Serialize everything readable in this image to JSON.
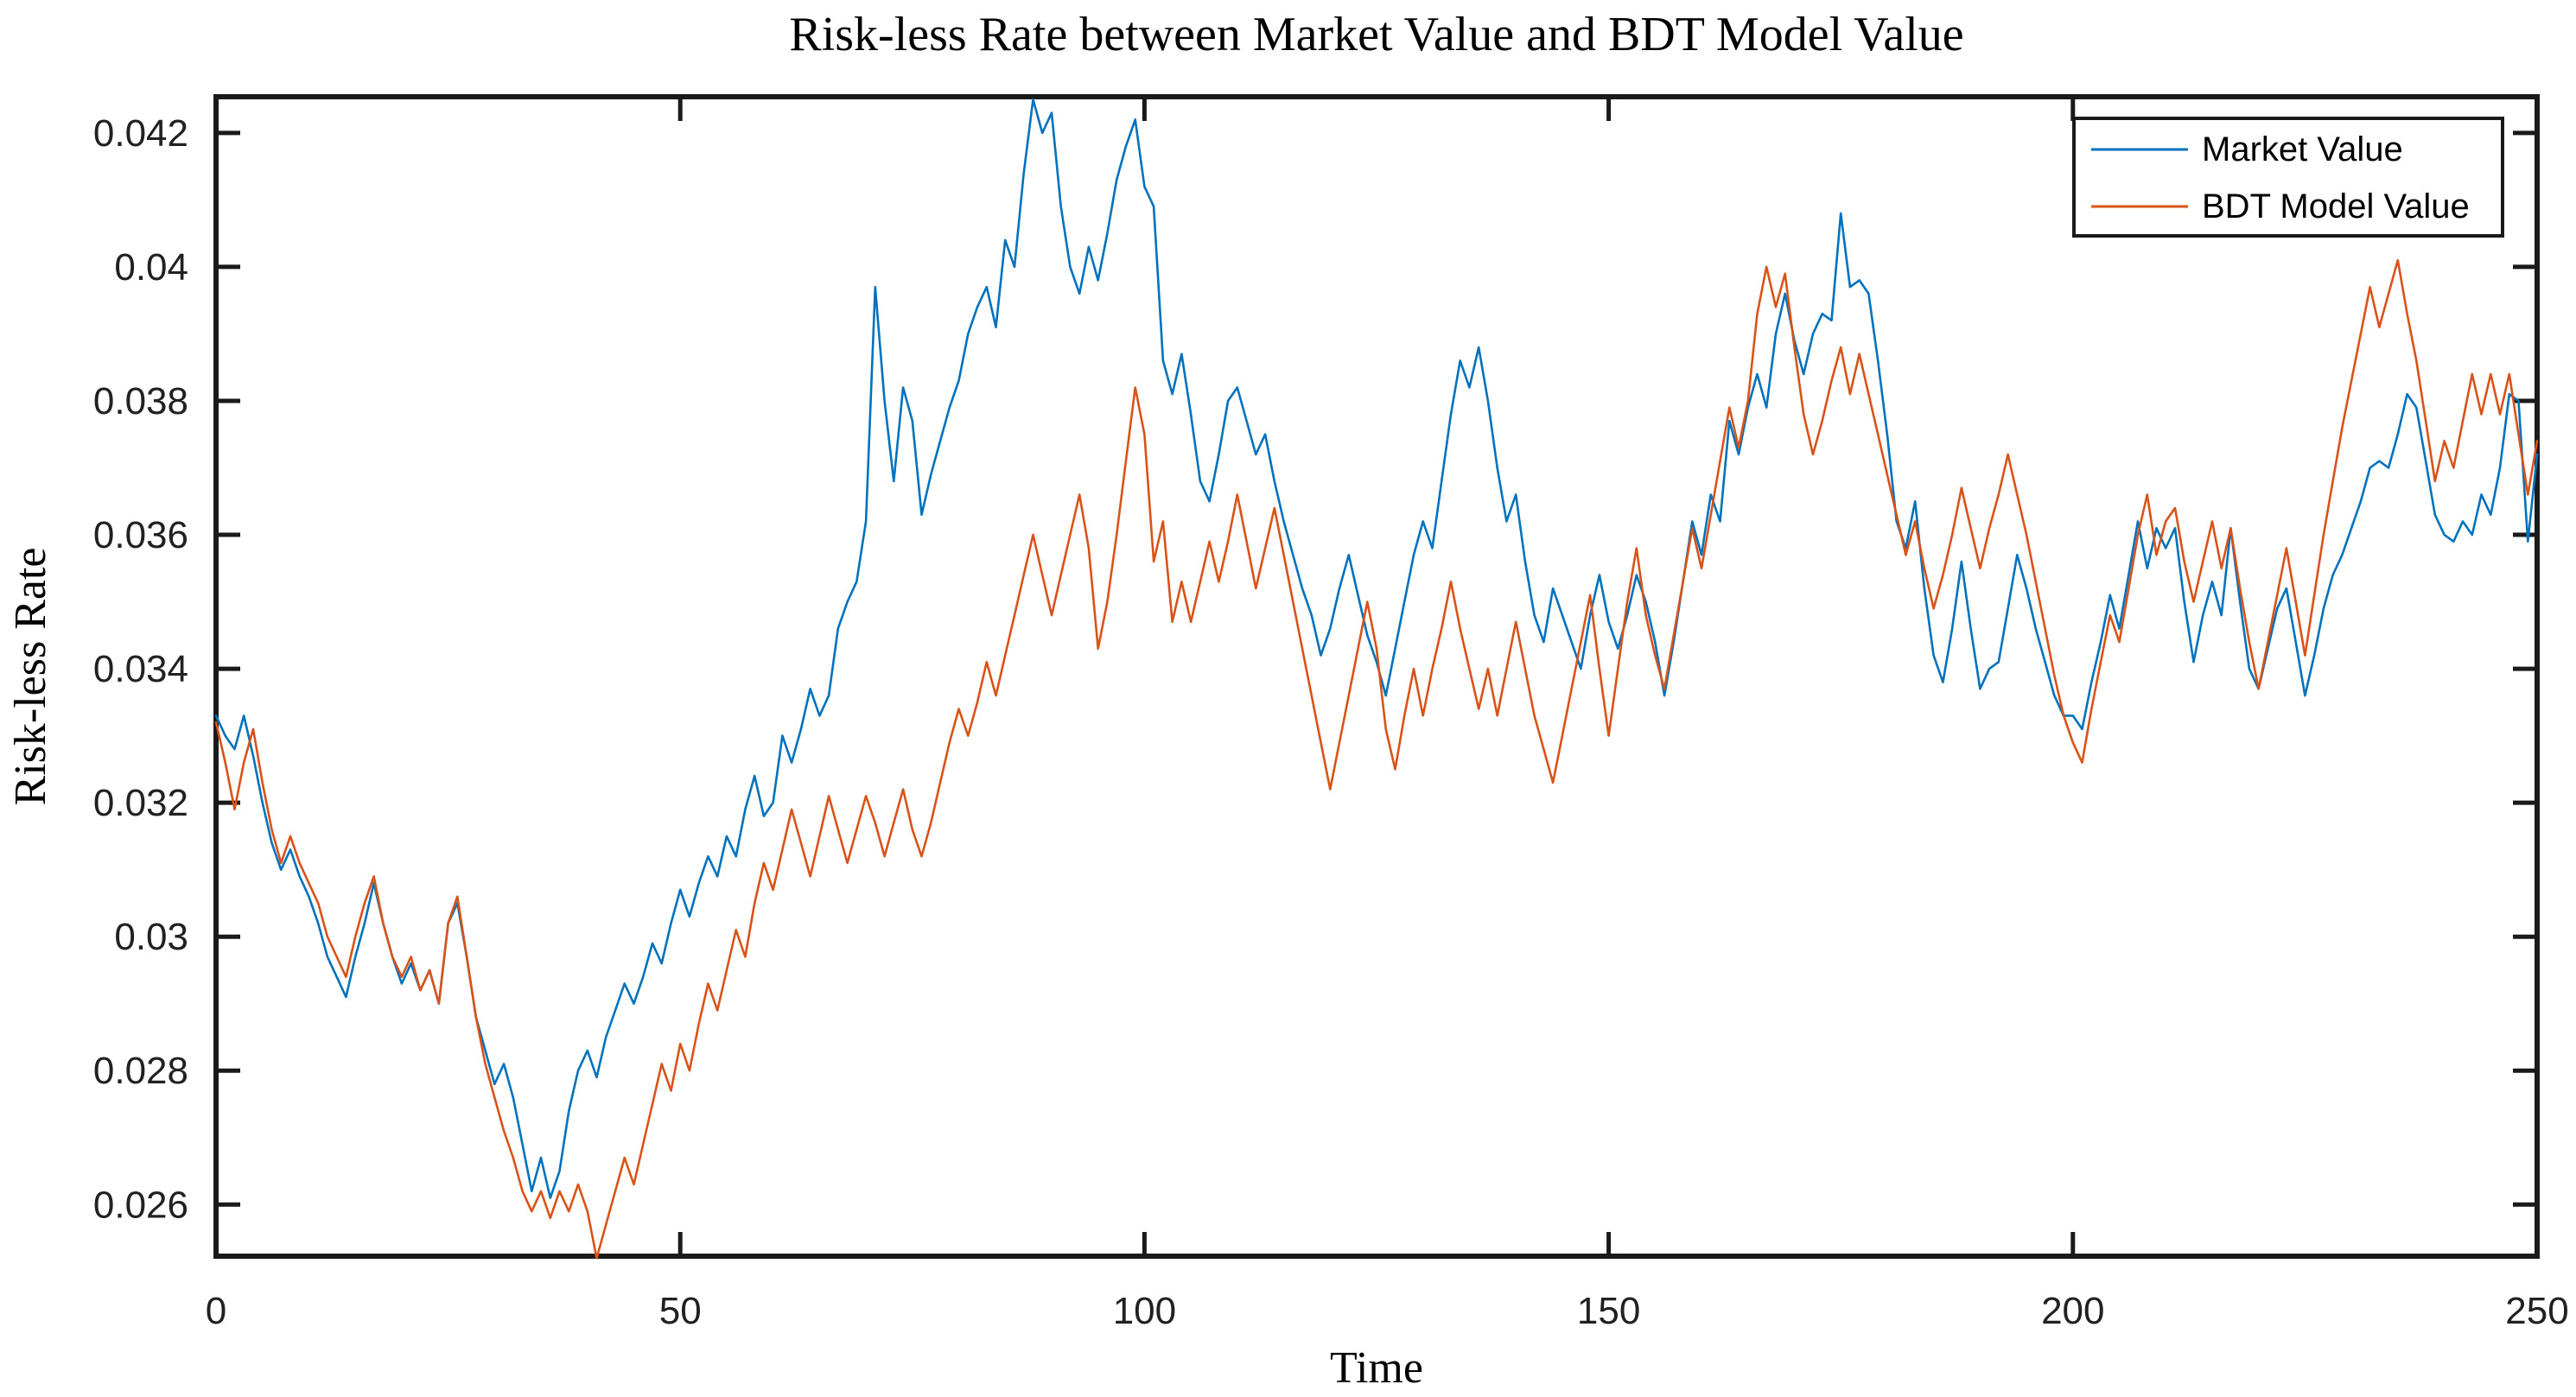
{
  "title": "Risk-less Rate between Market Value and BDT Model Value",
  "axes": {
    "xlabel": "Time",
    "ylabel": "Risk-less Rate",
    "xlim": [
      0,
      250
    ],
    "ylim": [
      0.02523,
      0.04254
    ],
    "xticks": [
      0,
      50,
      100,
      150,
      200,
      250
    ],
    "xtick_labels": [
      "0",
      "50",
      "100",
      "150",
      "200",
      "250"
    ],
    "yticks": [
      0.026,
      0.028,
      0.03,
      0.032,
      0.034,
      0.036,
      0.038,
      0.04,
      0.042
    ],
    "ytick_labels": [
      "0.026",
      "0.028",
      "0.03",
      "0.032",
      "0.034",
      "0.036",
      "0.038",
      "0.04",
      "0.042"
    ],
    "box": "on",
    "grid": "off",
    "axis_color": "#1a1a1a",
    "tick_direction": "in"
  },
  "legend": {
    "position": "top-right",
    "border_color": "#1a1a1a",
    "background": "#ffffff",
    "entries": [
      {
        "label": "Market Value",
        "color": "#0072BD"
      },
      {
        "label": "BDT Model Value",
        "color": "#D95319"
      }
    ]
  },
  "chart_data": {
    "type": "line",
    "title": "Risk-less Rate between Market Value and BDT Model Value",
    "xlabel": "Time",
    "ylabel": "Risk-less Rate",
    "xlim": [
      0,
      250
    ],
    "ylim": [
      0.02523,
      0.04254
    ],
    "legend_position": "top-right",
    "grid": false,
    "x": {
      "start": 0,
      "step": 1,
      "count": 251
    },
    "series": [
      {
        "name": "Market Value",
        "color": "#0072BD",
        "values": [
          0.0333,
          0.033,
          0.0328,
          0.0333,
          0.0327,
          0.032,
          0.0314,
          0.031,
          0.0313,
          0.0309,
          0.0306,
          0.0302,
          0.0297,
          0.0294,
          0.0291,
          0.0297,
          0.0302,
          0.0308,
          0.0302,
          0.0297,
          0.0293,
          0.0296,
          0.0292,
          0.0295,
          0.029,
          0.0302,
          0.0305,
          0.0297,
          0.0288,
          0.0283,
          0.0278,
          0.0281,
          0.0276,
          0.0269,
          0.0262,
          0.0267,
          0.0261,
          0.0265,
          0.0274,
          0.028,
          0.0283,
          0.0279,
          0.0285,
          0.0289,
          0.0293,
          0.029,
          0.0294,
          0.0299,
          0.0296,
          0.0302,
          0.0307,
          0.0303,
          0.0308,
          0.0312,
          0.0309,
          0.0315,
          0.0312,
          0.0319,
          0.0324,
          0.0318,
          0.032,
          0.033,
          0.0326,
          0.0331,
          0.0337,
          0.0333,
          0.0336,
          0.0346,
          0.035,
          0.0353,
          0.0362,
          0.0397,
          0.038,
          0.0368,
          0.0382,
          0.0377,
          0.0363,
          0.0369,
          0.0374,
          0.0379,
          0.0383,
          0.039,
          0.0394,
          0.0397,
          0.0391,
          0.0404,
          0.04,
          0.0414,
          0.0425,
          0.042,
          0.0423,
          0.0409,
          0.04,
          0.0396,
          0.0403,
          0.0398,
          0.0405,
          0.0413,
          0.0418,
          0.0422,
          0.0412,
          0.0409,
          0.0386,
          0.0381,
          0.0387,
          0.0378,
          0.0368,
          0.0365,
          0.0372,
          0.038,
          0.0382,
          0.0377,
          0.0372,
          0.0375,
          0.0368,
          0.0362,
          0.0357,
          0.0352,
          0.0348,
          0.0342,
          0.0346,
          0.0352,
          0.0357,
          0.0351,
          0.0345,
          0.0341,
          0.0336,
          0.0343,
          0.035,
          0.0357,
          0.0362,
          0.0358,
          0.0368,
          0.0378,
          0.0386,
          0.0382,
          0.0388,
          0.038,
          0.037,
          0.0362,
          0.0366,
          0.0356,
          0.0348,
          0.0344,
          0.0352,
          0.0348,
          0.0344,
          0.034,
          0.0348,
          0.0354,
          0.0347,
          0.0343,
          0.0348,
          0.0354,
          0.035,
          0.0344,
          0.0336,
          0.0344,
          0.0353,
          0.0362,
          0.0357,
          0.0366,
          0.0362,
          0.0377,
          0.0372,
          0.0379,
          0.0384,
          0.0379,
          0.039,
          0.0396,
          0.0389,
          0.0384,
          0.039,
          0.0393,
          0.0392,
          0.0408,
          0.0397,
          0.0398,
          0.0396,
          0.0386,
          0.0375,
          0.0362,
          0.0358,
          0.0365,
          0.0352,
          0.0342,
          0.0338,
          0.0346,
          0.0356,
          0.0346,
          0.0337,
          0.034,
          0.0341,
          0.0349,
          0.0357,
          0.0352,
          0.0346,
          0.0341,
          0.0336,
          0.0333,
          0.0333,
          0.0331,
          0.0338,
          0.0344,
          0.0351,
          0.0346,
          0.0354,
          0.0362,
          0.0355,
          0.0361,
          0.0358,
          0.0361,
          0.035,
          0.0341,
          0.0348,
          0.0353,
          0.0348,
          0.0361,
          0.035,
          0.034,
          0.0337,
          0.0343,
          0.0349,
          0.0352,
          0.0344,
          0.0336,
          0.0342,
          0.0349,
          0.0354,
          0.0357,
          0.0361,
          0.0365,
          0.037,
          0.0371,
          0.037,
          0.0375,
          0.0381,
          0.0379,
          0.0371,
          0.0363,
          0.036,
          0.0359,
          0.0362,
          0.036,
          0.0366,
          0.0363,
          0.037,
          0.0381,
          0.038,
          0.0359,
          0.0372
        ]
      },
      {
        "name": "BDT Model Value",
        "color": "#D95319",
        "values": [
          0.0332,
          0.0326,
          0.0319,
          0.0326,
          0.0331,
          0.0323,
          0.0316,
          0.0311,
          0.0315,
          0.0311,
          0.0308,
          0.0305,
          0.03,
          0.0297,
          0.0294,
          0.03,
          0.0305,
          0.0309,
          0.0302,
          0.0297,
          0.0294,
          0.0297,
          0.0292,
          0.0295,
          0.029,
          0.0302,
          0.0306,
          0.0297,
          0.0288,
          0.0281,
          0.0276,
          0.0271,
          0.0267,
          0.0262,
          0.0259,
          0.0262,
          0.0258,
          0.0262,
          0.0259,
          0.0263,
          0.0259,
          0.0252,
          0.0257,
          0.0262,
          0.0267,
          0.0263,
          0.0269,
          0.0275,
          0.0281,
          0.0277,
          0.0284,
          0.028,
          0.0287,
          0.0293,
          0.0289,
          0.0295,
          0.0301,
          0.0297,
          0.0305,
          0.0311,
          0.0307,
          0.0313,
          0.0319,
          0.0314,
          0.0309,
          0.0315,
          0.0321,
          0.0316,
          0.0311,
          0.0316,
          0.0321,
          0.0317,
          0.0312,
          0.0317,
          0.0322,
          0.0316,
          0.0312,
          0.0317,
          0.0323,
          0.0329,
          0.0334,
          0.033,
          0.0335,
          0.0341,
          0.0336,
          0.0342,
          0.0348,
          0.0354,
          0.036,
          0.0354,
          0.0348,
          0.0354,
          0.036,
          0.0366,
          0.0358,
          0.0343,
          0.035,
          0.036,
          0.0371,
          0.0382,
          0.0375,
          0.0356,
          0.0362,
          0.0347,
          0.0353,
          0.0347,
          0.0353,
          0.0359,
          0.0353,
          0.0359,
          0.0366,
          0.0359,
          0.0352,
          0.0358,
          0.0364,
          0.0357,
          0.035,
          0.0343,
          0.0336,
          0.0329,
          0.0322,
          0.0329,
          0.0336,
          0.0343,
          0.035,
          0.0343,
          0.0331,
          0.0325,
          0.0333,
          0.034,
          0.0333,
          0.034,
          0.0346,
          0.0353,
          0.0346,
          0.034,
          0.0334,
          0.034,
          0.0333,
          0.034,
          0.0347,
          0.034,
          0.0333,
          0.0328,
          0.0323,
          0.033,
          0.0337,
          0.0344,
          0.0351,
          0.034,
          0.033,
          0.034,
          0.035,
          0.0358,
          0.0348,
          0.0342,
          0.0337,
          0.0345,
          0.0353,
          0.0361,
          0.0355,
          0.0363,
          0.0371,
          0.0379,
          0.0373,
          0.038,
          0.0393,
          0.04,
          0.0394,
          0.0399,
          0.0388,
          0.0378,
          0.0372,
          0.0377,
          0.0383,
          0.0388,
          0.0381,
          0.0387,
          0.0381,
          0.0375,
          0.0369,
          0.0363,
          0.0357,
          0.0362,
          0.0355,
          0.0349,
          0.0354,
          0.036,
          0.0367,
          0.0361,
          0.0355,
          0.0361,
          0.0366,
          0.0372,
          0.0366,
          0.036,
          0.0353,
          0.0346,
          0.0339,
          0.0333,
          0.0329,
          0.0326,
          0.0334,
          0.0341,
          0.0348,
          0.0344,
          0.0352,
          0.036,
          0.0366,
          0.0357,
          0.0362,
          0.0364,
          0.0356,
          0.035,
          0.0356,
          0.0362,
          0.0355,
          0.0361,
          0.0352,
          0.0344,
          0.0337,
          0.0344,
          0.0351,
          0.0358,
          0.035,
          0.0342,
          0.0351,
          0.036,
          0.0368,
          0.0376,
          0.0383,
          0.039,
          0.0397,
          0.0391,
          0.0396,
          0.0401,
          0.0393,
          0.0386,
          0.0377,
          0.0368,
          0.0374,
          0.037,
          0.0377,
          0.0384,
          0.0378,
          0.0384,
          0.0378,
          0.0384,
          0.0375,
          0.0366,
          0.0374
        ]
      }
    ]
  }
}
